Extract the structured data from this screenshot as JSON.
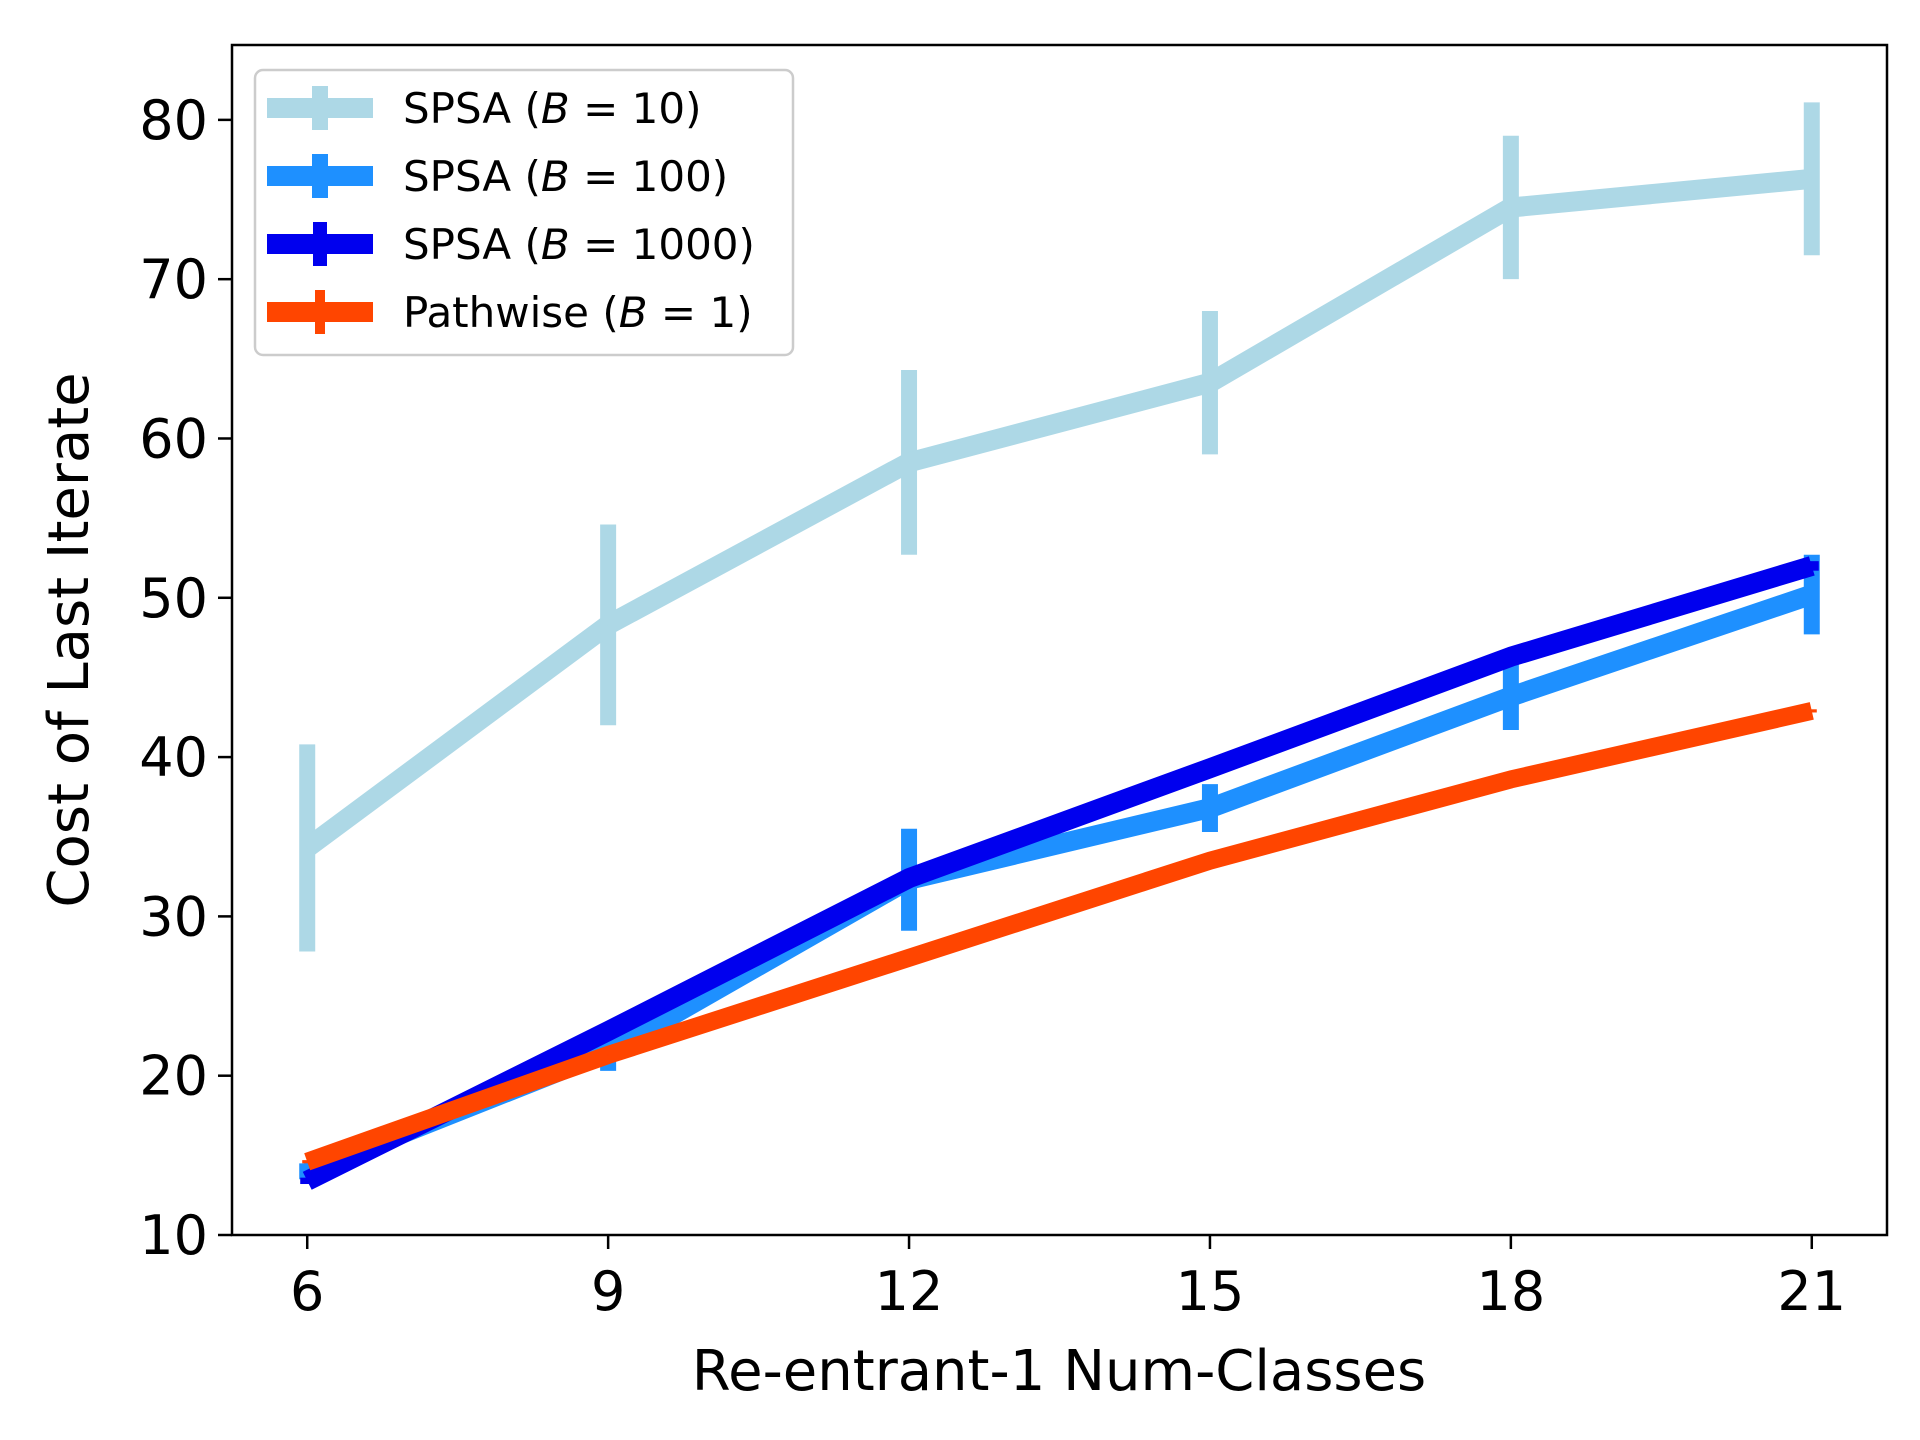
{
  "chart_data": {
    "type": "line",
    "title": "",
    "xlabel": "Re-entrant-1 Num-Classes",
    "ylabel": "Cost of Last Iterate",
    "x": [
      6,
      9,
      12,
      15,
      18,
      21
    ],
    "xticks": [
      "6",
      "9",
      "12",
      "15",
      "18",
      "21"
    ],
    "yticks": [
      "10",
      "20",
      "30",
      "40",
      "50",
      "60",
      "70",
      "80"
    ],
    "xlim": [
      5.25,
      21.75
    ],
    "ylim": [
      10,
      84.7
    ],
    "grid": false,
    "legend_position": "top-left",
    "series": [
      {
        "name": "SPSA (B = 10)",
        "legend_prefix": "SPSA (",
        "legend_var": "B",
        "legend_eq": " = 10)",
        "color": "#add8e6",
        "values": [
          34.3,
          48.3,
          58.5,
          63.5,
          74.5,
          76.3
        ],
        "errors": [
          6.5,
          6.3,
          5.8,
          4.5,
          4.5,
          4.8
        ]
      },
      {
        "name": "SPSA (B = 100)",
        "legend_prefix": "SPSA (",
        "legend_var": "B",
        "legend_eq": " = 100)",
        "color": "#1e90ff",
        "values": [
          14.0,
          21.5,
          32.3,
          36.8,
          43.8,
          50.2
        ],
        "errors": [
          0.5,
          1.2,
          3.2,
          1.5,
          2.1,
          2.5
        ]
      },
      {
        "name": "SPSA (B = 1000)",
        "legend_prefix": "SPSA (",
        "legend_var": "B",
        "legend_eq": " = 1000)",
        "color": "#0000ee",
        "values": [
          13.4,
          22.8,
          32.4,
          39.3,
          46.3,
          52.0
        ],
        "errors": [
          0.2,
          0.3,
          0.3,
          0.3,
          0.3,
          0.3
        ]
      },
      {
        "name": "Pathwise (B = 1)",
        "legend_prefix": "Pathwise (",
        "legend_var": "B",
        "legend_eq": " = 1)",
        "color": "#ff4500",
        "values": [
          14.6,
          21.3,
          27.4,
          33.5,
          38.6,
          42.9
        ],
        "errors": [
          0.1,
          0.1,
          0.1,
          0.1,
          0.1,
          0.1
        ]
      }
    ]
  }
}
